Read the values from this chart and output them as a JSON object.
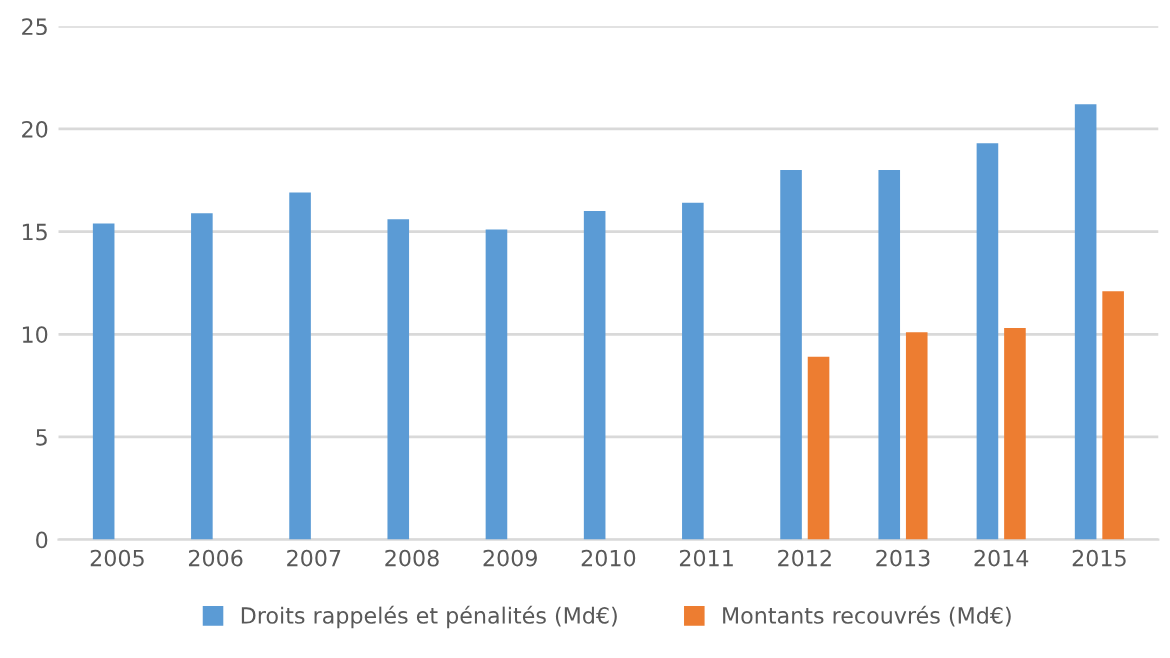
{
  "chart_data": {
    "type": "bar",
    "categories": [
      "2005",
      "2006",
      "2007",
      "2008",
      "2009",
      "2010",
      "2011",
      "2012",
      "2013",
      "2014",
      "2015"
    ],
    "series": [
      {
        "name": "Droits rappelés et pénalités (Md€)",
        "color": "#5b9bd5",
        "values": [
          15.4,
          15.9,
          16.9,
          15.6,
          15.1,
          16.0,
          16.4,
          18.0,
          18.0,
          19.3,
          21.2
        ]
      },
      {
        "name": "Montants recouvrés (Md€)",
        "color": "#ed7d31",
        "values": [
          null,
          null,
          null,
          null,
          null,
          null,
          null,
          8.9,
          10.1,
          10.3,
          12.1
        ]
      }
    ],
    "ylim": [
      0,
      25
    ],
    "yticks": [
      0,
      5,
      10,
      15,
      20,
      25
    ],
    "grid": "y",
    "legend": "bottom"
  }
}
